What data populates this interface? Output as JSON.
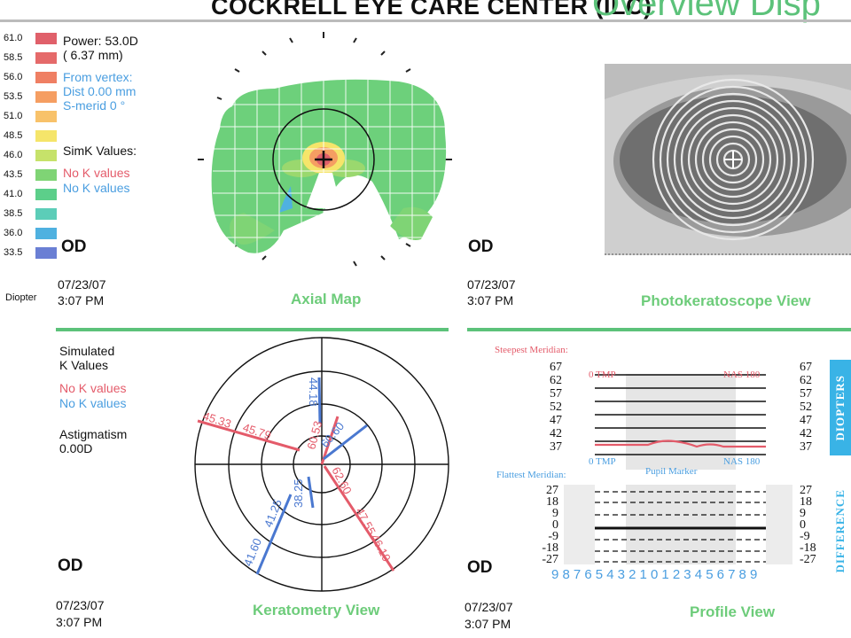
{
  "header": {
    "title": "COCKRELL EYE CARE CENTER (ILC)",
    "subtitle": "Overview Disp"
  },
  "scale": {
    "unit_label": "Diopter",
    "entries": [
      {
        "value": "61.0",
        "color": "#e0606a"
      },
      {
        "value": "58.5",
        "color": "#e56a6a"
      },
      {
        "value": "56.0",
        "color": "#ef7f63"
      },
      {
        "value": "53.5",
        "color": "#f59e62"
      },
      {
        "value": "51.0",
        "color": "#f8c26a"
      },
      {
        "value": "48.5",
        "color": "#f5e56a"
      },
      {
        "value": "46.0",
        "color": "#c6e26a"
      },
      {
        "value": "43.5",
        "color": "#7fd475"
      },
      {
        "value": "41.0",
        "color": "#5ccf8a"
      },
      {
        "value": "38.5",
        "color": "#5ccdb8"
      },
      {
        "value": "36.0",
        "color": "#4fb1e0"
      },
      {
        "value": "33.5",
        "color": "#6a7fd4"
      }
    ]
  },
  "axial": {
    "power_line1": "Power:  53.0D",
    "power_line2": "(   6.37 mm)",
    "vertex_line1": "From vertex:",
    "vertex_line2": "Dist   0.00 mm",
    "vertex_line3": "S-merid        0 °",
    "simk_label": "SimK Values:",
    "simk_red": "No K values",
    "simk_blue": "No K values",
    "eye": "OD",
    "date": "07/23/07",
    "time": "3:07 PM",
    "title": "Axial Map"
  },
  "photo": {
    "eye": "OD",
    "date": "07/23/07",
    "time": "3:07 PM",
    "title": "Photokeratoscope View"
  },
  "kerato": {
    "simk_line1": "Simulated",
    "simk_line2": "K Values",
    "red": "No K values",
    "blue": "No K values",
    "astig_label": "Astigmatism",
    "astig_value": "0.00D",
    "eye": "OD",
    "date": "07/23/07",
    "time": "3:07 PM",
    "title": "Keratometry View",
    "readings": {
      "r1": "45.33",
      "r2": "45.79",
      "r3": "60.53",
      "r4": "44.18",
      "r5": "60.60",
      "r6": "38.25",
      "r7": "41.60",
      "r8": "41.25",
      "r9": "62.60",
      "r10": "47.55",
      "r11": "46.10"
    }
  },
  "profile": {
    "steep_label": "Steepest Meridian:",
    "flat_label": "Flattest Meridian:",
    "tmp_label": "0 TMP",
    "nas_label": "NAS 180",
    "pupil_label": "Pupil Marker",
    "diopter_ticks": [
      "67",
      "62",
      "57",
      "52",
      "47",
      "42",
      "37"
    ],
    "diff_ticks": [
      "27",
      "18",
      "9",
      "0",
      "-9",
      "-18",
      "-27"
    ],
    "x_ticks": "9876543210123456789",
    "tab_diopters": "DIOPTERS",
    "tab_difference": "DIFFERENCE",
    "eye": "OD",
    "date": "07/23/07",
    "time": "3:07 PM",
    "title": "Profile View"
  }
}
